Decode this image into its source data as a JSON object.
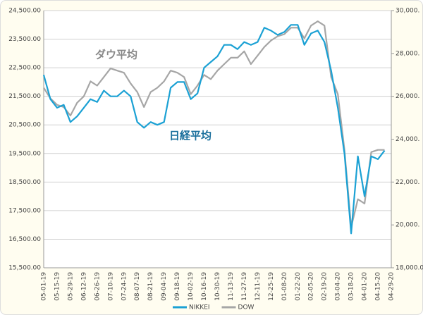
{
  "chart_data": {
    "type": "line",
    "categories": [
      "05-01-19",
      null,
      "05-15-19",
      null,
      "05-29-19",
      null,
      "06-12-19",
      null,
      "06-26-19",
      null,
      "07-10-19",
      null,
      "07-24-19",
      null,
      "08-07-19",
      null,
      "08-21-19",
      null,
      "09-04-19",
      null,
      "09-18-19",
      null,
      "10-02-19",
      null,
      "10-16-19",
      null,
      "10-30-19",
      null,
      "11-13-19",
      null,
      "11-27-19",
      null,
      "12-11-19",
      null,
      "12-25-19",
      null,
      "01-08-20",
      null,
      "01-22-20",
      null,
      "02-05-20",
      null,
      "02-19-20",
      null,
      "03-04-20",
      null,
      "03-18-20",
      null,
      "04-01-20",
      null,
      "04-15-20",
      null,
      "04-29-20"
    ],
    "series": [
      {
        "name": "NIKKEI",
        "color": "#1ba1d4",
        "values": [
          22250,
          21400,
          21100,
          21200,
          20600,
          20800,
          21100,
          21400,
          21300,
          21700,
          21500,
          21500,
          21700,
          21500,
          20600,
          20400,
          20600,
          20500,
          20600,
          21800,
          22000,
          22000,
          21400,
          21600,
          22500,
          22700,
          22900,
          23300,
          23300,
          23150,
          23400,
          23300,
          23400,
          23900,
          23800,
          23650,
          23750,
          24000,
          24000,
          23300,
          23700,
          23800,
          23400,
          22400,
          21100,
          19500,
          16700,
          19400,
          18000,
          19400,
          19300,
          19600,
          null
        ]
      },
      {
        "name": "DOW",
        "color": "#a6a6a6",
        "axis": "y2",
        "values": [
          26400,
          25900,
          25600,
          25500,
          25100,
          25700,
          26000,
          26700,
          26500,
          26900,
          27300,
          27200,
          27100,
          26600,
          26200,
          25500,
          26200,
          26400,
          26700,
          27200,
          27100,
          26900,
          26100,
          26500,
          27000,
          26800,
          27200,
          27500,
          27800,
          27800,
          28100,
          27500,
          27900,
          28300,
          28600,
          28800,
          28900,
          29200,
          29200,
          28700,
          29300,
          29500,
          29300,
          26900,
          26100,
          23500,
          19900,
          21200,
          21000,
          23400,
          23500,
          23500,
          null
        ]
      }
    ],
    "ylim": [
      15500,
      24500
    ],
    "yticks": [
      {
        "value": 15500,
        "label": "15,500.00"
      },
      {
        "value": 16500,
        "label": "16,500.00"
      },
      {
        "value": 17500,
        "label": "17,500.00"
      },
      {
        "value": 18500,
        "label": "18,500.00"
      },
      {
        "value": 19500,
        "label": "19,500.00"
      },
      {
        "value": 20500,
        "label": "20,500.00"
      },
      {
        "value": 21500,
        "label": "21,500.00"
      },
      {
        "value": 22500,
        "label": "22,500.00"
      },
      {
        "value": 23500,
        "label": "23,500.00"
      },
      {
        "value": 24500,
        "label": "24,500.00"
      }
    ],
    "y2lim": [
      18000,
      30000
    ],
    "y2ticks": [
      {
        "value": 18000,
        "label": "18,000.00"
      },
      {
        "value": 20000,
        "label": "20,000."
      },
      {
        "value": 22000,
        "label": "22,000."
      },
      {
        "value": 24000,
        "label": "24,000."
      },
      {
        "value": 26000,
        "label": "26,000."
      },
      {
        "value": 28000,
        "label": "28,000."
      },
      {
        "value": 30000,
        "label": "30,000."
      }
    ],
    "grid": true,
    "annotations": [
      {
        "text": "ダウ平均",
        "color": "#888888"
      },
      {
        "text": "日経平均",
        "color": "#1a6f9c"
      }
    ],
    "legend": "bottom"
  }
}
